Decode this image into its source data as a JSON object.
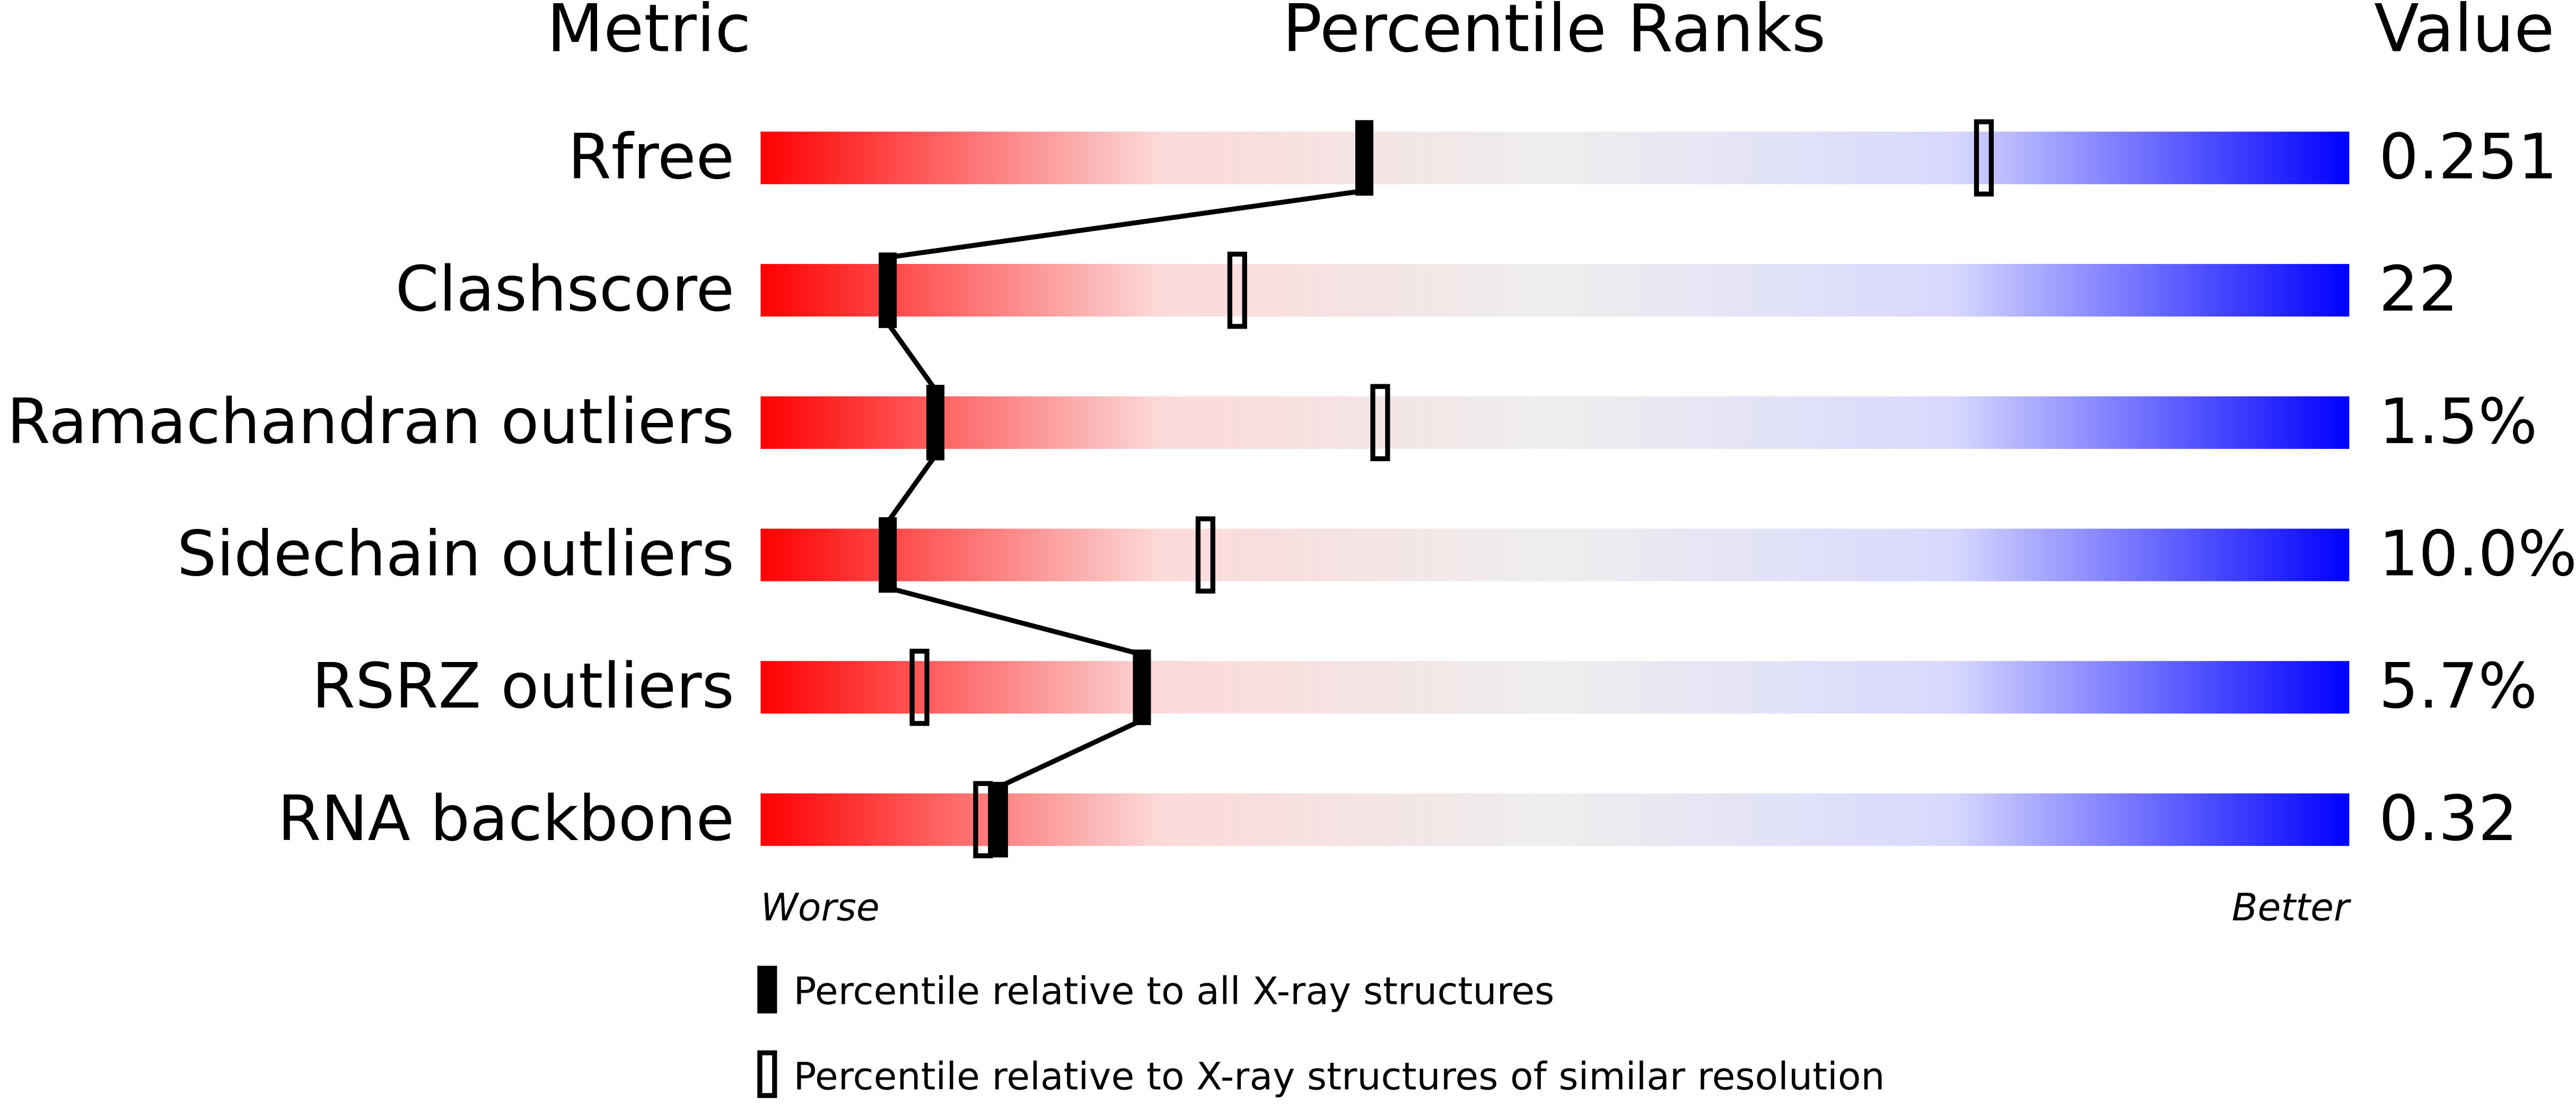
{
  "chart_data": {
    "type": "percentile",
    "column_headers": [
      "Metric",
      "Percentile Ranks",
      "Value"
    ],
    "categories": [
      "Rfree",
      "Clashscore",
      "Ramachandran outliers",
      "Sidechain outliers",
      "RSRZ outliers",
      "RNA backbone"
    ],
    "metric_values": [
      0.251,
      22,
      1.5,
      10.0,
      5.7,
      0.32
    ],
    "metric_value_labels": [
      "0.251",
      "22",
      "1.5%",
      "10.0%",
      "5.7%",
      "0.32"
    ],
    "series": [
      {
        "name": "Percentile relative to all X-ray structures",
        "color": "#000000",
        "style": "filled",
        "values": [
          38,
          8,
          11,
          8,
          24,
          15
        ]
      },
      {
        "name": "Percentile relative to X-ray structures of similar resolution",
        "color": "#000000",
        "style": "open",
        "values": [
          77,
          30,
          39,
          28,
          10,
          14
        ]
      }
    ],
    "xlim": [
      0,
      100
    ],
    "x_label_left": "Worse",
    "x_label_right": "Better",
    "gradient": [
      "#ff0000",
      "#fcd9d9",
      "#eeeeee",
      "#d8d8ff",
      "#0000ff"
    ]
  }
}
